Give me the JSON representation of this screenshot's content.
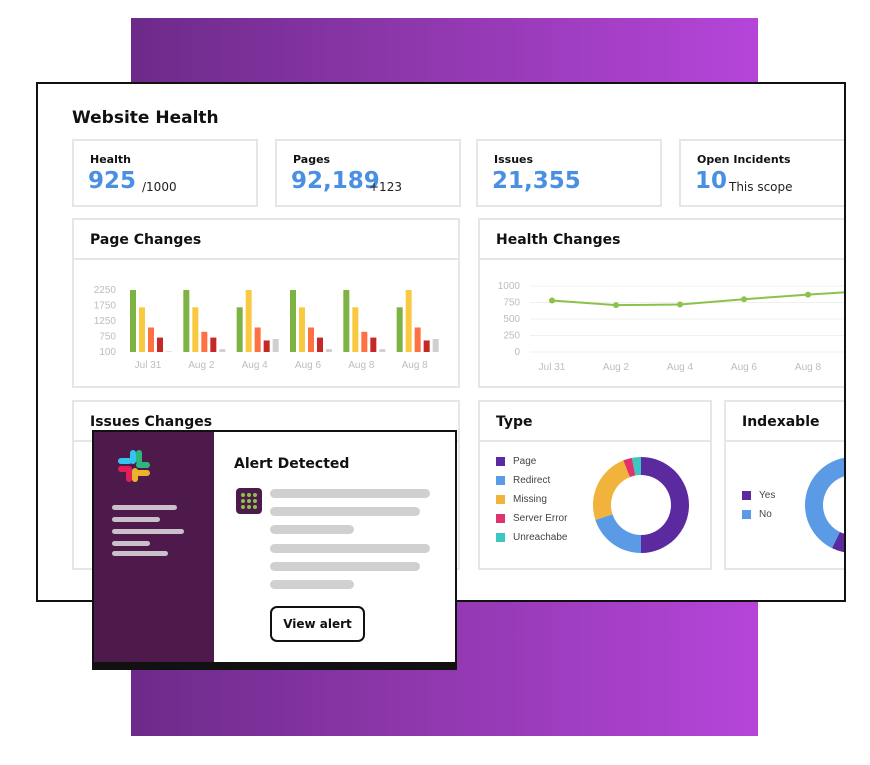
{
  "dashboard": {
    "title": "Website Health",
    "stats": [
      {
        "label": "Health",
        "value": "925",
        "sub": "/1000"
      },
      {
        "label": "Pages",
        "value": "92,189",
        "sub": "+123"
      },
      {
        "label": "Issues",
        "value": "21,355",
        "sub": ""
      },
      {
        "label": "Open Incidents",
        "value": "10",
        "sub": "This scope"
      }
    ],
    "panels": {
      "page_changes": "Page Changes",
      "health_changes": "Health Changes",
      "issues_changes": "Issues Changes",
      "type": "Type",
      "indexable": "Indexable"
    },
    "type_legend": [
      {
        "label": "Page",
        "color": "#5b2a9e"
      },
      {
        "label": "Redirect",
        "color": "#5b9be6"
      },
      {
        "label": "Missing",
        "color": "#f2b33d"
      },
      {
        "label": "Server Error",
        "color": "#e0336b"
      },
      {
        "label": "Unreachabe",
        "color": "#3cc8c0"
      }
    ],
    "indexable_legend": [
      {
        "label": "Yes",
        "color": "#5b2a9e"
      },
      {
        "label": "No",
        "color": "#5b9be6"
      }
    ]
  },
  "chart_data": [
    {
      "type": "bar",
      "title": "Page Changes",
      "categories": [
        "Jul 31",
        "Aug 2",
        "Aug 4",
        "Aug 6",
        "Aug 8",
        "Aug 8"
      ],
      "yticks": [
        "2250",
        "1750",
        "1250",
        "750",
        "100"
      ],
      "ylim": [
        100,
        2250
      ],
      "series": [
        {
          "color": "#7cb342",
          "values": [
            2300,
            2300,
            1650,
            2300,
            2300,
            1650
          ]
        },
        {
          "color": "#f9c940",
          "values": [
            1650,
            1650,
            2250,
            1650,
            1650,
            2250
          ]
        },
        {
          "color": "#ff7043",
          "values": [
            950,
            800,
            950,
            950,
            800,
            950
          ]
        },
        {
          "color": "#c62828",
          "values": [
            600,
            600,
            500,
            600,
            600,
            500
          ]
        },
        {
          "color": "#cfcfcf",
          "values": [
            120,
            200,
            550,
            200,
            200,
            550
          ]
        }
      ]
    },
    {
      "type": "line",
      "title": "Health Changes",
      "categories": [
        "Jul 31",
        "Aug 2",
        "Aug 4",
        "Aug 6",
        "Aug 8",
        ""
      ],
      "yticks": [
        "1000",
        "750",
        "500",
        "250",
        "0"
      ],
      "ylim": [
        0,
        1000
      ],
      "series": [
        {
          "color": "#8bc34a",
          "values": [
            780,
            710,
            720,
            800,
            870,
            930
          ]
        }
      ]
    },
    {
      "type": "pie",
      "title": "Type",
      "slices": [
        {
          "label": "Page",
          "value": 50,
          "color": "#5b2a9e"
        },
        {
          "label": "Redirect",
          "value": 20,
          "color": "#5b9be6"
        },
        {
          "label": "Missing",
          "value": 24,
          "color": "#f2b33d"
        },
        {
          "label": "Server Error",
          "value": 3,
          "color": "#e0336b"
        },
        {
          "label": "Unreachabe",
          "value": 3,
          "color": "#3cc8c0"
        }
      ]
    },
    {
      "type": "pie",
      "title": "Indexable",
      "slices": [
        {
          "label": "Yes",
          "value": 60,
          "color": "#5b2a9e"
        },
        {
          "label": "No",
          "value": 40,
          "color": "#5b9be6"
        }
      ]
    }
  ],
  "alert": {
    "title": "Alert Detected",
    "button_label": "View alert"
  }
}
